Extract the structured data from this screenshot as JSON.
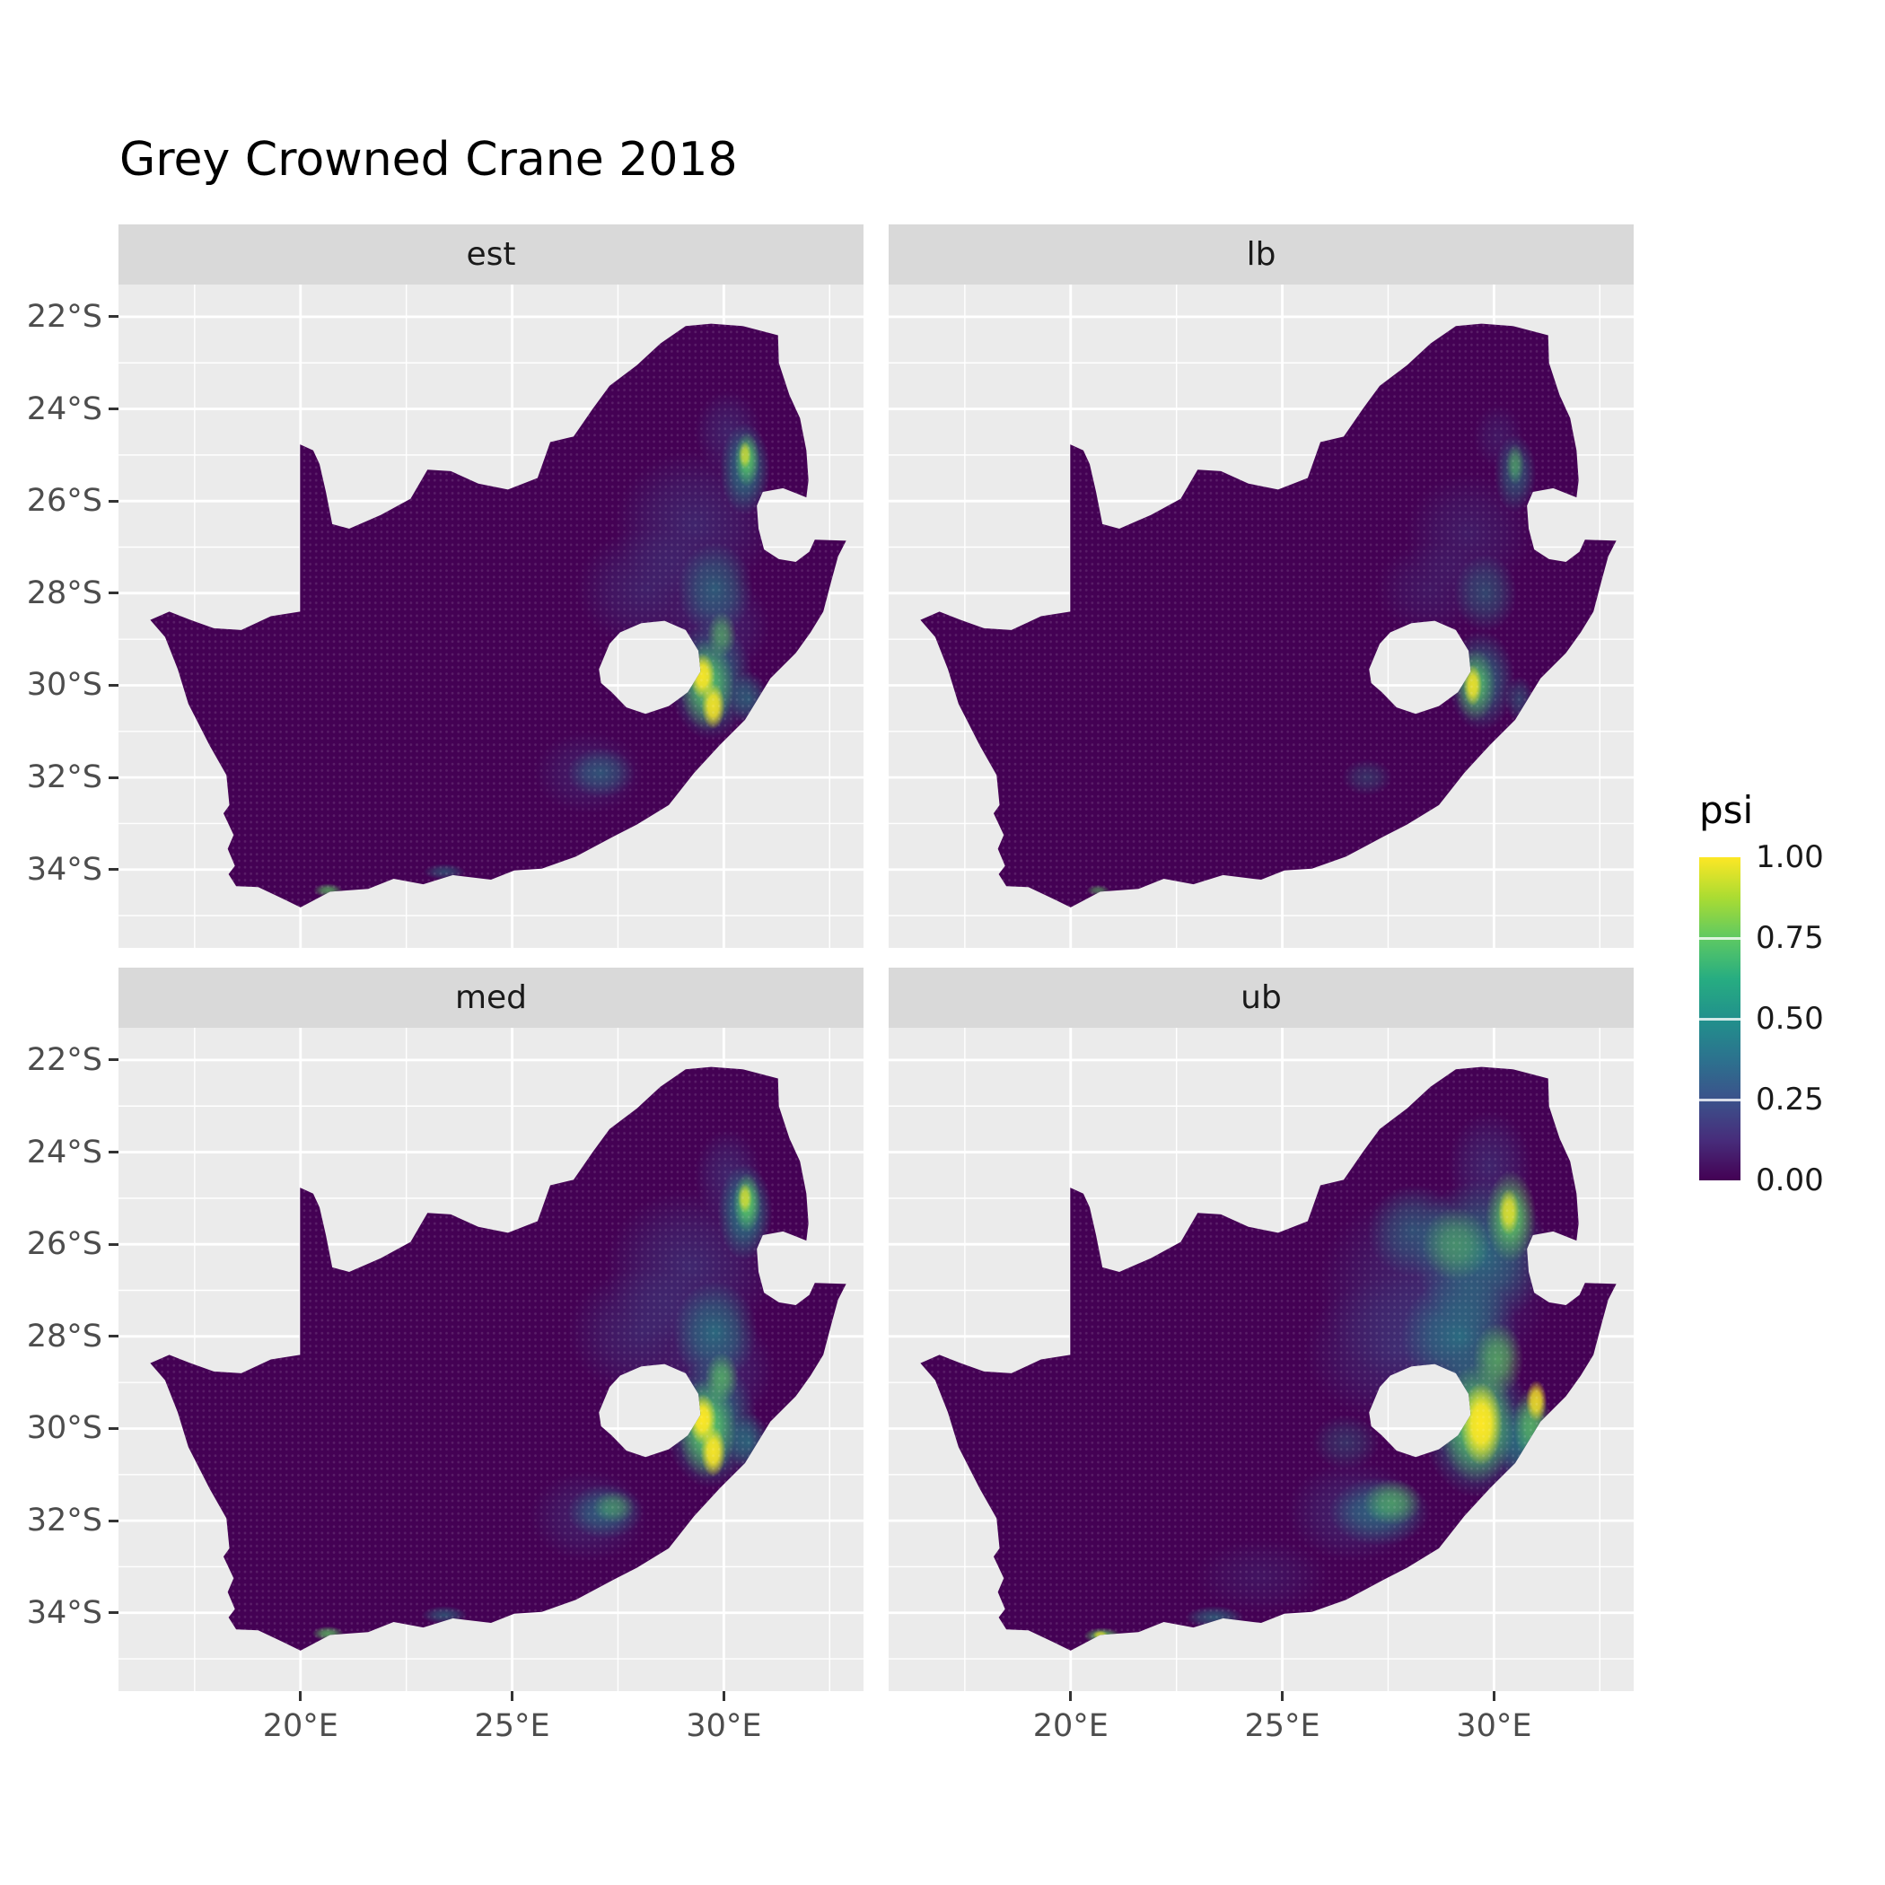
{
  "chart_data": {
    "type": "heatmap",
    "title": "Grey Crowned Crane 2018",
    "facets": [
      {
        "label": "est",
        "hotspots": [
          [
            "b",
            29.3,
            26.5,
            1.9,
            1.6,
            0.55
          ],
          [
            "b",
            28.2,
            27.9,
            1.7,
            1.3,
            0.5
          ],
          [
            "b",
            30.1,
            24.5,
            0.8,
            0.9,
            0.5
          ],
          [
            "b",
            29.9,
            28.7,
            1.2,
            1.1,
            0.5
          ],
          [
            "b",
            26.8,
            31.9,
            1.3,
            0.9,
            0.45
          ],
          [
            "t",
            30.5,
            25.3,
            0.6,
            1.0,
            0.8
          ],
          [
            "t",
            29.8,
            27.9,
            0.9,
            1.0,
            0.6
          ],
          [
            "t",
            29.7,
            29.9,
            1.0,
            1.3,
            0.8
          ],
          [
            "t",
            30.6,
            30.3,
            0.45,
            0.6,
            0.6
          ],
          [
            "t",
            27.1,
            31.9,
            0.8,
            0.55,
            0.5
          ],
          [
            "t",
            23.4,
            34.05,
            0.5,
            0.18,
            0.5
          ],
          [
            "g",
            30.55,
            25.1,
            0.3,
            0.6,
            0.85
          ],
          [
            "g",
            29.6,
            30.0,
            0.65,
            1.0,
            0.8
          ],
          [
            "g",
            29.95,
            28.9,
            0.35,
            0.5,
            0.6
          ],
          [
            "g",
            20.65,
            34.45,
            0.35,
            0.15,
            0.7
          ],
          [
            "y",
            29.5,
            29.8,
            0.3,
            0.5,
            0.95
          ],
          [
            "y",
            29.75,
            30.45,
            0.28,
            0.5,
            0.9
          ],
          [
            "y",
            30.5,
            25.0,
            0.15,
            0.3,
            0.6
          ]
        ]
      },
      {
        "label": "lb",
        "hotspots": [
          [
            "b",
            29.4,
            26.7,
            1.5,
            1.3,
            0.4
          ],
          [
            "b",
            28.5,
            27.9,
            1.3,
            1.0,
            0.35
          ],
          [
            "b",
            30.1,
            24.6,
            0.6,
            0.7,
            0.35
          ],
          [
            "t",
            30.5,
            25.4,
            0.5,
            0.85,
            0.6
          ],
          [
            "t",
            29.8,
            28.0,
            0.75,
            0.85,
            0.5
          ],
          [
            "t",
            29.7,
            29.9,
            0.8,
            1.1,
            0.7
          ],
          [
            "t",
            30.6,
            30.3,
            0.35,
            0.5,
            0.45
          ],
          [
            "t",
            27.0,
            32.0,
            0.6,
            0.4,
            0.35
          ],
          [
            "g",
            29.55,
            30.0,
            0.5,
            0.8,
            0.75
          ],
          [
            "g",
            30.5,
            25.2,
            0.22,
            0.45,
            0.55
          ],
          [
            "g",
            20.65,
            34.45,
            0.28,
            0.12,
            0.55
          ],
          [
            "y",
            29.5,
            30.0,
            0.22,
            0.45,
            0.85
          ]
        ]
      },
      {
        "label": "med",
        "hotspots": [
          [
            "b",
            29.2,
            26.5,
            2.0,
            1.7,
            0.6
          ],
          [
            "b",
            28.1,
            27.9,
            1.8,
            1.4,
            0.55
          ],
          [
            "b",
            30.1,
            24.5,
            0.8,
            1.0,
            0.55
          ],
          [
            "b",
            29.9,
            28.7,
            1.3,
            1.2,
            0.55
          ],
          [
            "b",
            26.8,
            31.9,
            1.4,
            1.0,
            0.5
          ],
          [
            "b",
            27.8,
            29.6,
            0.8,
            0.7,
            0.35
          ],
          [
            "t",
            30.5,
            25.3,
            0.65,
            1.05,
            0.85
          ],
          [
            "t",
            29.8,
            27.9,
            1.0,
            1.1,
            0.7
          ],
          [
            "t",
            29.7,
            29.9,
            1.1,
            1.4,
            0.85
          ],
          [
            "t",
            30.6,
            30.3,
            0.5,
            0.65,
            0.65
          ],
          [
            "t",
            27.2,
            31.8,
            0.9,
            0.6,
            0.6
          ],
          [
            "t",
            23.4,
            34.05,
            0.55,
            0.2,
            0.55
          ],
          [
            "g",
            30.55,
            25.1,
            0.33,
            0.65,
            0.9
          ],
          [
            "g",
            29.6,
            30.0,
            0.7,
            1.1,
            0.9
          ],
          [
            "g",
            29.95,
            28.9,
            0.4,
            0.55,
            0.7
          ],
          [
            "g",
            20.65,
            34.45,
            0.38,
            0.16,
            0.75
          ],
          [
            "g",
            27.4,
            31.7,
            0.5,
            0.35,
            0.45
          ],
          [
            "y",
            29.5,
            29.8,
            0.33,
            0.55,
            1.0
          ],
          [
            "y",
            29.75,
            30.5,
            0.3,
            0.55,
            0.95
          ],
          [
            "y",
            30.5,
            25.0,
            0.17,
            0.33,
            0.65
          ]
        ]
      },
      {
        "label": "ub",
        "hotspots": [
          [
            "b",
            28.6,
            26.9,
            2.8,
            2.2,
            0.6
          ],
          [
            "b",
            27.7,
            28.3,
            2.2,
            1.6,
            0.55
          ],
          [
            "b",
            29.9,
            24.3,
            1.0,
            1.2,
            0.55
          ],
          [
            "b",
            26.7,
            31.8,
            1.6,
            1.1,
            0.55
          ],
          [
            "b",
            24.5,
            33.2,
            1.6,
            0.8,
            0.3
          ],
          [
            "t",
            29.7,
            26.2,
            1.6,
            1.6,
            0.7
          ],
          [
            "t",
            29.2,
            28.0,
            1.4,
            1.3,
            0.7
          ],
          [
            "t",
            29.6,
            29.9,
            1.3,
            1.6,
            0.85
          ],
          [
            "t",
            27.3,
            31.8,
            1.2,
            0.75,
            0.65
          ],
          [
            "t",
            30.7,
            30.3,
            0.65,
            0.9,
            0.75
          ],
          [
            "t",
            23.4,
            34.1,
            0.7,
            0.25,
            0.6
          ],
          [
            "t",
            28.1,
            25.7,
            1.1,
            1.0,
            0.5
          ],
          [
            "t",
            26.5,
            30.3,
            0.8,
            0.6,
            0.35
          ],
          [
            "g",
            30.4,
            25.4,
            0.6,
            1.0,
            0.9
          ],
          [
            "g",
            29.6,
            29.9,
            0.9,
            1.3,
            0.9
          ],
          [
            "g",
            30.1,
            28.5,
            0.6,
            0.8,
            0.7
          ],
          [
            "g",
            30.9,
            29.9,
            0.45,
            0.8,
            0.75
          ],
          [
            "g",
            27.6,
            31.6,
            0.7,
            0.5,
            0.6
          ],
          [
            "g",
            20.75,
            34.5,
            0.45,
            0.18,
            0.85
          ],
          [
            "g",
            29.1,
            26.0,
            0.8,
            0.8,
            0.5
          ],
          [
            "y",
            29.7,
            29.9,
            0.5,
            0.9,
            1.0
          ],
          [
            "y",
            30.35,
            25.3,
            0.25,
            0.5,
            0.75
          ],
          [
            "y",
            31.0,
            29.4,
            0.25,
            0.45,
            0.85
          ],
          [
            "y",
            20.7,
            34.48,
            0.18,
            0.1,
            0.6
          ]
        ]
      }
    ],
    "x_ticks": {
      "values": [
        20,
        25,
        30
      ],
      "labels": [
        "20°E",
        "25°E",
        "30°E"
      ]
    },
    "y_ticks": {
      "values": [
        22,
        24,
        26,
        28,
        30,
        32,
        34
      ],
      "labels": [
        "22°S",
        "24°S",
        "26°S",
        "28°S",
        "30°S",
        "32°S",
        "34°S"
      ]
    },
    "x_minor": [
      17.5,
      22.5,
      27.5,
      32.5
    ],
    "y_minor": [
      23,
      25,
      27,
      29,
      31,
      33,
      35
    ],
    "x_domain": [
      15.7,
      33.3
    ],
    "y_domain": [
      21.3,
      35.7
    ],
    "legend": {
      "title": "psi",
      "breaks": [
        {
          "value": 1.0,
          "label": "1.00"
        },
        {
          "value": 0.75,
          "label": "0.75"
        },
        {
          "value": 0.5,
          "label": "0.50"
        },
        {
          "value": 0.25,
          "label": "0.25"
        },
        {
          "value": 0.0,
          "label": "0.00"
        }
      ],
      "viridis_stops": [
        "#440154",
        "#472D7B",
        "#3B528B",
        "#2C728E",
        "#21918C",
        "#27AD81",
        "#5EC962",
        "#AADC32",
        "#FDE725"
      ]
    },
    "colors": {
      "panel_bg": "#EBEBEB",
      "strip_bg": "#D9D9D9",
      "grid": "#FFFFFF",
      "axis_text": "#4D4D4D",
      "land_base": "#440154"
    },
    "hotspot_colors": {
      "b": "#3B528B",
      "t": "#21918C",
      "g": "#5EC962",
      "y": "#FDE725"
    },
    "map_outline": [
      [
        16.45,
        28.58
      ],
      [
        16.8,
        28.95
      ],
      [
        17.1,
        29.65
      ],
      [
        17.35,
        30.4
      ],
      [
        17.85,
        31.3
      ],
      [
        18.25,
        31.95
      ],
      [
        18.32,
        32.6
      ],
      [
        18.18,
        32.78
      ],
      [
        18.42,
        33.25
      ],
      [
        18.28,
        33.55
      ],
      [
        18.45,
        33.92
      ],
      [
        18.3,
        34.1
      ],
      [
        18.48,
        34.36
      ],
      [
        19.0,
        34.38
      ],
      [
        19.6,
        34.64
      ],
      [
        20.0,
        34.82
      ],
      [
        20.7,
        34.48
      ],
      [
        21.6,
        34.42
      ],
      [
        22.2,
        34.2
      ],
      [
        22.9,
        34.32
      ],
      [
        23.6,
        34.12
      ],
      [
        24.5,
        34.22
      ],
      [
        25.05,
        34.02
      ],
      [
        25.7,
        33.98
      ],
      [
        26.5,
        33.72
      ],
      [
        27.4,
        33.28
      ],
      [
        27.95,
        33.02
      ],
      [
        28.7,
        32.6
      ],
      [
        29.3,
        31.9
      ],
      [
        29.9,
        31.3
      ],
      [
        30.5,
        30.75
      ],
      [
        31.1,
        29.85
      ],
      [
        31.7,
        29.3
      ],
      [
        32.05,
        28.85
      ],
      [
        32.35,
        28.4
      ],
      [
        32.55,
        27.7
      ],
      [
        32.7,
        27.2
      ],
      [
        32.89,
        26.86
      ],
      [
        32.15,
        26.84
      ],
      [
        32.02,
        27.1
      ],
      [
        31.7,
        27.32
      ],
      [
        31.3,
        27.26
      ],
      [
        30.95,
        27.05
      ],
      [
        30.82,
        26.6
      ],
      [
        30.78,
        26.1
      ],
      [
        30.92,
        25.8
      ],
      [
        31.4,
        25.72
      ],
      [
        31.95,
        25.92
      ],
      [
        32.0,
        25.55
      ],
      [
        31.95,
        24.9
      ],
      [
        31.8,
        24.2
      ],
      [
        31.55,
        23.7
      ],
      [
        31.3,
        23.0
      ],
      [
        31.28,
        22.4
      ],
      [
        30.45,
        22.2
      ],
      [
        29.7,
        22.15
      ],
      [
        29.1,
        22.2
      ],
      [
        28.5,
        22.58
      ],
      [
        27.95,
        23.05
      ],
      [
        27.3,
        23.5
      ],
      [
        26.9,
        24.0
      ],
      [
        26.45,
        24.6
      ],
      [
        25.9,
        24.72
      ],
      [
        25.6,
        25.5
      ],
      [
        24.9,
        25.75
      ],
      [
        24.2,
        25.62
      ],
      [
        23.55,
        25.35
      ],
      [
        23.0,
        25.32
      ],
      [
        22.6,
        25.95
      ],
      [
        21.9,
        26.3
      ],
      [
        21.15,
        26.6
      ],
      [
        20.75,
        26.5
      ],
      [
        20.6,
        25.8
      ],
      [
        20.45,
        25.2
      ],
      [
        20.3,
        24.9
      ],
      [
        19.99,
        24.77
      ],
      [
        19.99,
        28.4
      ],
      [
        19.3,
        28.5
      ],
      [
        18.6,
        28.8
      ],
      [
        17.95,
        28.76
      ],
      [
        17.4,
        28.58
      ],
      [
        16.9,
        28.4
      ]
    ],
    "lesotho_hole": [
      [
        27.05,
        29.65
      ],
      [
        27.3,
        29.1
      ],
      [
        27.55,
        28.85
      ],
      [
        28.05,
        28.65
      ],
      [
        28.6,
        28.6
      ],
      [
        29.1,
        28.8
      ],
      [
        29.4,
        29.25
      ],
      [
        29.45,
        29.7
      ],
      [
        29.15,
        30.15
      ],
      [
        28.7,
        30.45
      ],
      [
        28.15,
        30.62
      ],
      [
        27.7,
        30.48
      ],
      [
        27.35,
        30.15
      ],
      [
        27.1,
        29.95
      ]
    ]
  }
}
